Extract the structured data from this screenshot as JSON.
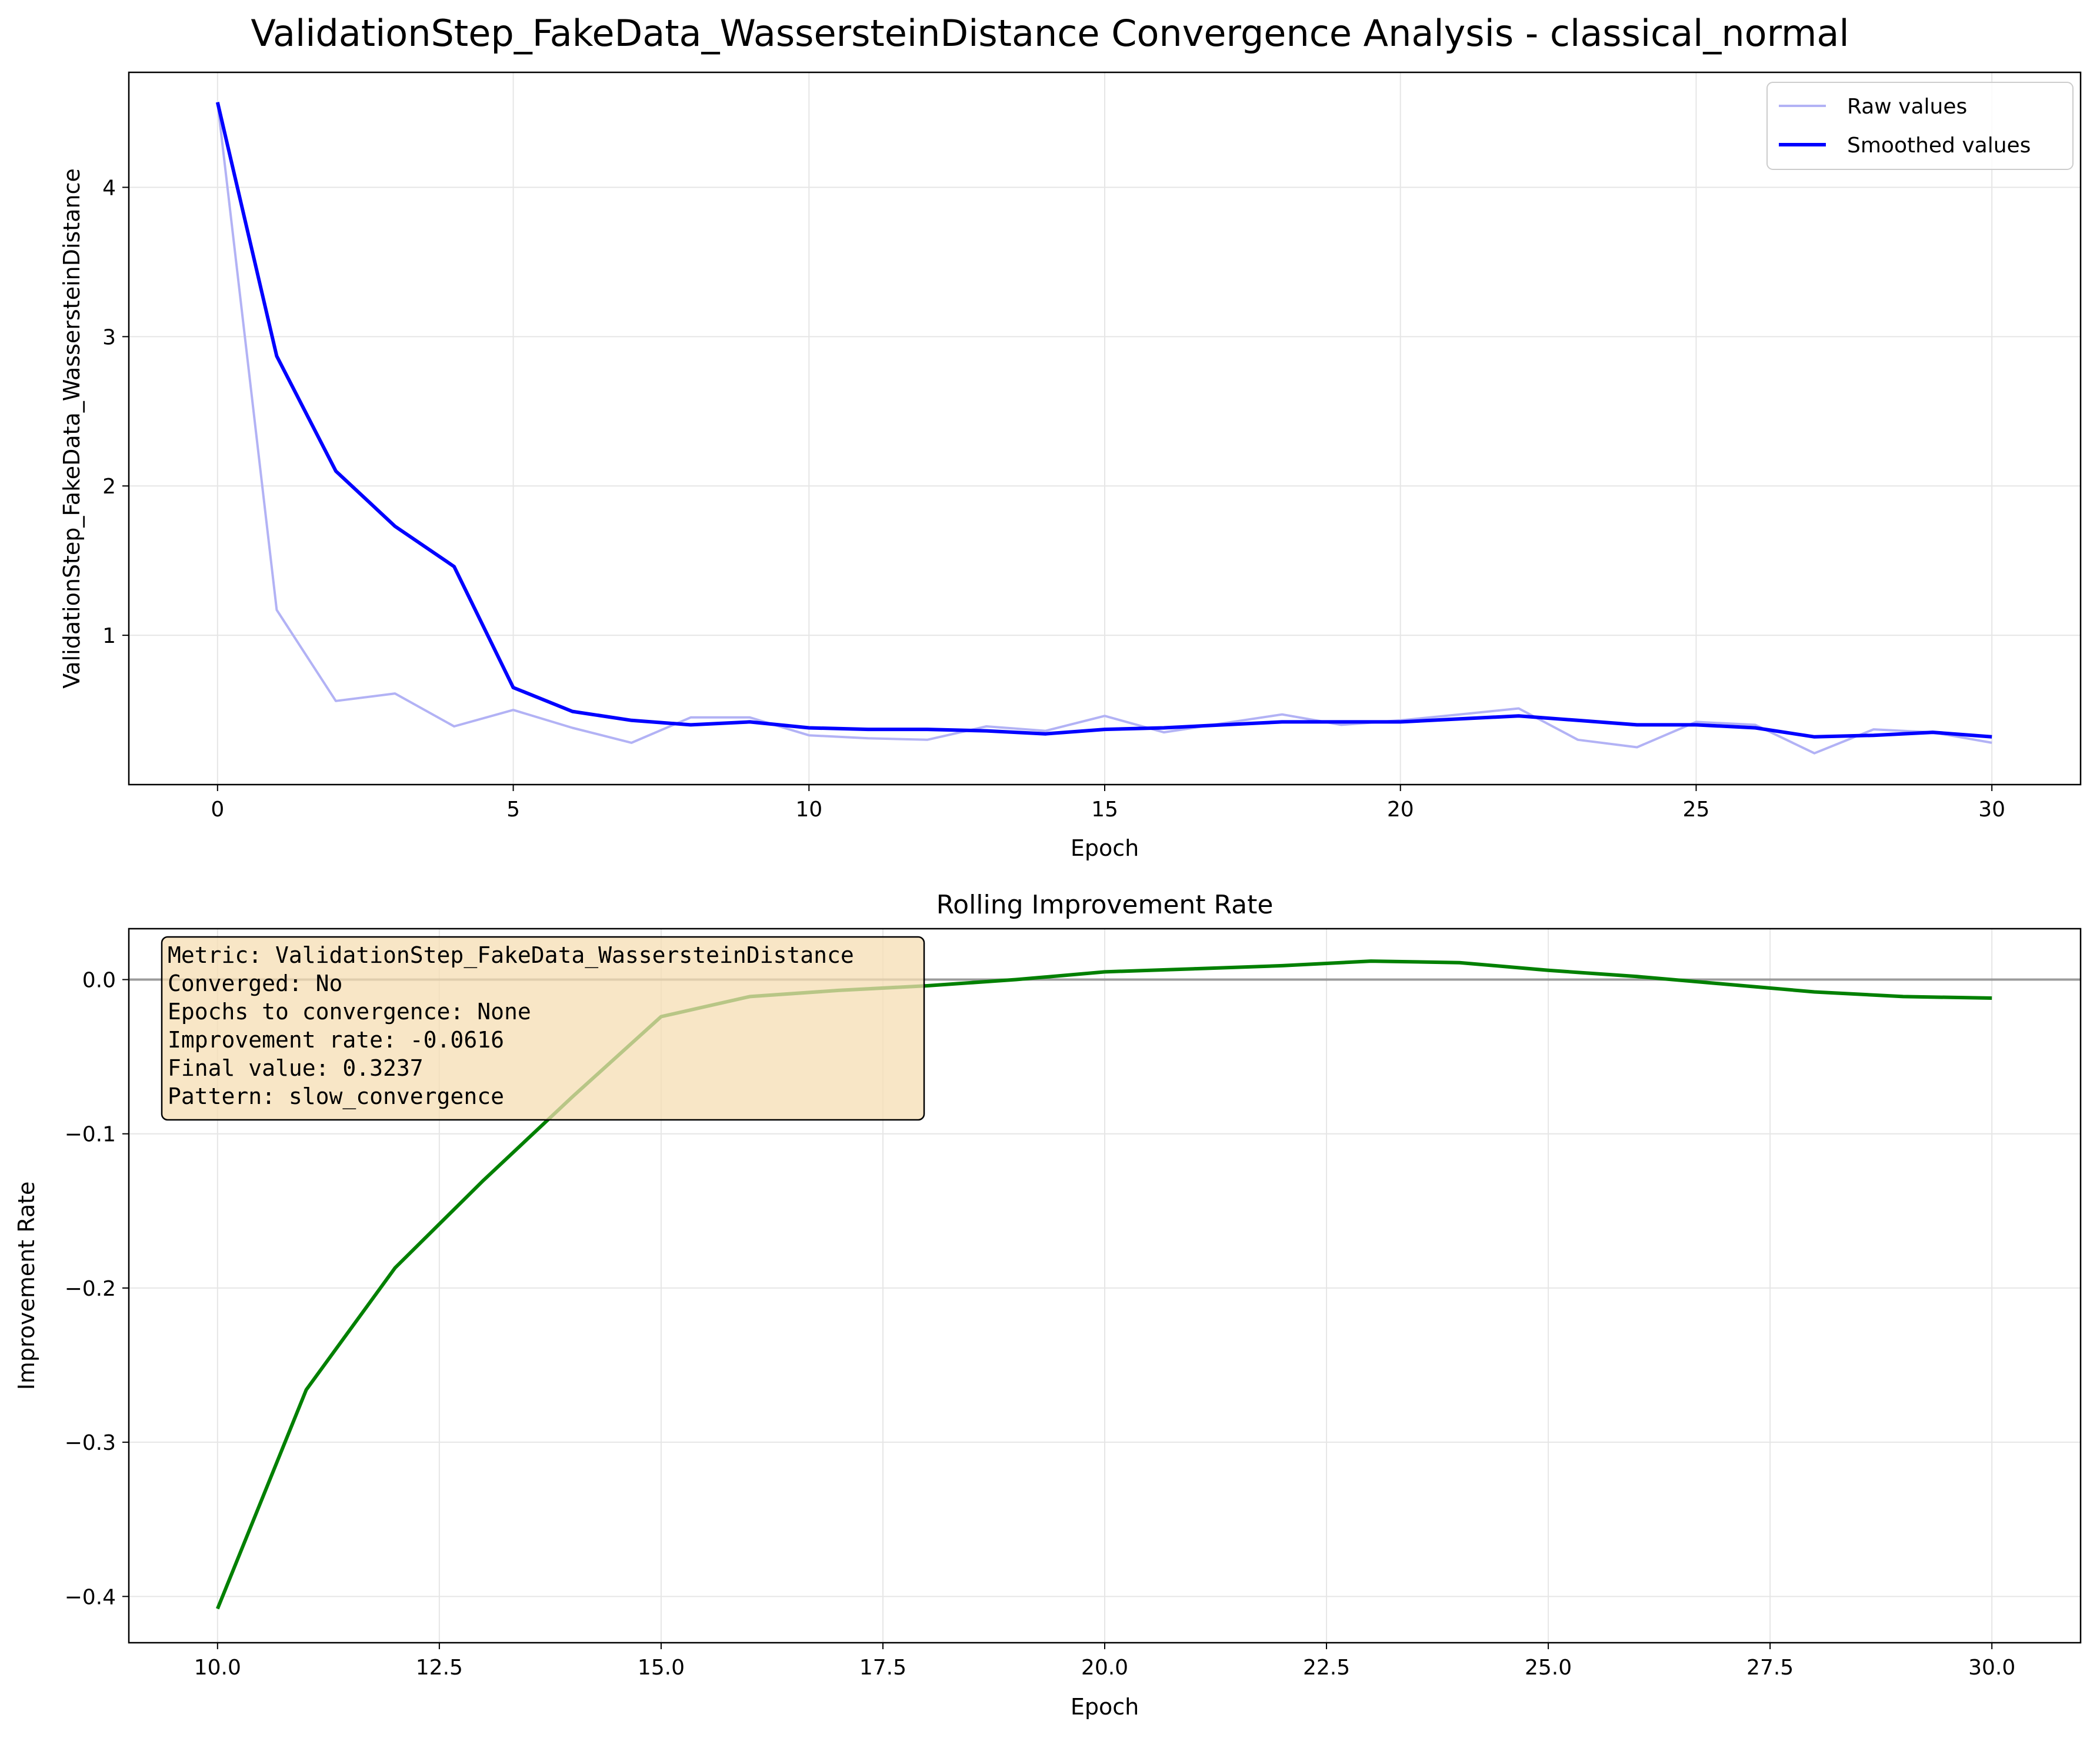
{
  "figure": {
    "title": "ValidationStep_FakeData_WassersteinDistance Convergence Analysis - classical_normal"
  },
  "chart_data": [
    {
      "type": "line",
      "title": "",
      "xlabel": "Epoch",
      "ylabel": "ValidationStep_FakeData_WassersteinDistance",
      "xlim": [
        -1.5,
        31.5
      ],
      "ylim": [
        0.0,
        4.77
      ],
      "xticks": [
        0,
        5,
        10,
        15,
        20,
        25,
        30
      ],
      "xtick_labels": [
        "0",
        "5",
        "10",
        "15",
        "20",
        "25",
        "30"
      ],
      "yticks": [
        1,
        2,
        3,
        4
      ],
      "ytick_labels": [
        "1",
        "2",
        "3",
        "4"
      ],
      "grid": true,
      "legend_position": "top-right",
      "x": [
        0,
        1,
        2,
        3,
        4,
        5,
        6,
        7,
        8,
        9,
        10,
        11,
        12,
        13,
        14,
        15,
        16,
        17,
        18,
        19,
        20,
        21,
        22,
        23,
        24,
        25,
        26,
        27,
        28,
        29,
        30
      ],
      "series": [
        {
          "name": "Raw values",
          "color": "#b2b2f5",
          "values": [
            4.57,
            1.17,
            0.56,
            0.61,
            0.39,
            0.5,
            0.38,
            0.28,
            0.45,
            0.45,
            0.33,
            0.31,
            0.3,
            0.39,
            0.36,
            0.46,
            0.35,
            0.41,
            0.47,
            0.4,
            0.43,
            0.47,
            0.51,
            0.3,
            0.25,
            0.42,
            0.4,
            0.21,
            0.37,
            0.35,
            0.28
          ]
        },
        {
          "name": "Smoothed values",
          "color": "#0000ff",
          "values": [
            4.57,
            2.87,
            2.1,
            1.73,
            1.46,
            0.65,
            0.49,
            0.43,
            0.4,
            0.42,
            0.38,
            0.37,
            0.37,
            0.36,
            0.34,
            0.37,
            0.38,
            0.4,
            0.42,
            0.42,
            0.42,
            0.44,
            0.46,
            0.43,
            0.4,
            0.4,
            0.38,
            0.32,
            0.33,
            0.35,
            0.32
          ]
        }
      ]
    },
    {
      "type": "line",
      "title": "Rolling Improvement Rate",
      "xlabel": "Epoch",
      "ylabel": "Improvement Rate",
      "xlim": [
        9.0,
        31.0
      ],
      "ylim": [
        -0.43,
        0.033
      ],
      "xticks": [
        10,
        12.5,
        15,
        17.5,
        20,
        22.5,
        25,
        27.5,
        30
      ],
      "xtick_labels": [
        "10.0",
        "12.5",
        "15.0",
        "17.5",
        "20.0",
        "22.5",
        "25.0",
        "27.5",
        "30.0"
      ],
      "yticks": [
        -0.4,
        -0.3,
        -0.2,
        -0.1,
        0.0
      ],
      "ytick_labels": [
        "−0.4",
        "−0.3",
        "−0.2",
        "−0.1",
        "0.0"
      ],
      "grid": true,
      "reference_line_y": 0.0,
      "x": [
        10,
        11,
        12,
        13,
        14,
        15,
        16,
        17,
        18,
        19,
        20,
        21,
        22,
        23,
        24,
        25,
        26,
        27,
        28,
        29,
        30
      ],
      "series": [
        {
          "color": "#008000",
          "values": [
            -0.408,
            -0.266,
            -0.187,
            -0.13,
            -0.076,
            -0.024,
            -0.011,
            -0.007,
            -0.004,
            0.0,
            0.005,
            0.007,
            0.009,
            0.012,
            0.011,
            0.006,
            0.002,
            -0.003,
            -0.008,
            -0.011,
            -0.012
          ]
        }
      ],
      "annotation_lines": [
        "Metric: ValidationStep_FakeData_WassersteinDistance",
        "Converged: No",
        "Epochs to convergence: None",
        "Improvement rate: -0.0616",
        "Final value: 0.3237",
        "Pattern: slow_convergence"
      ],
      "annotation_box_fill": "#f5deb3"
    }
  ]
}
